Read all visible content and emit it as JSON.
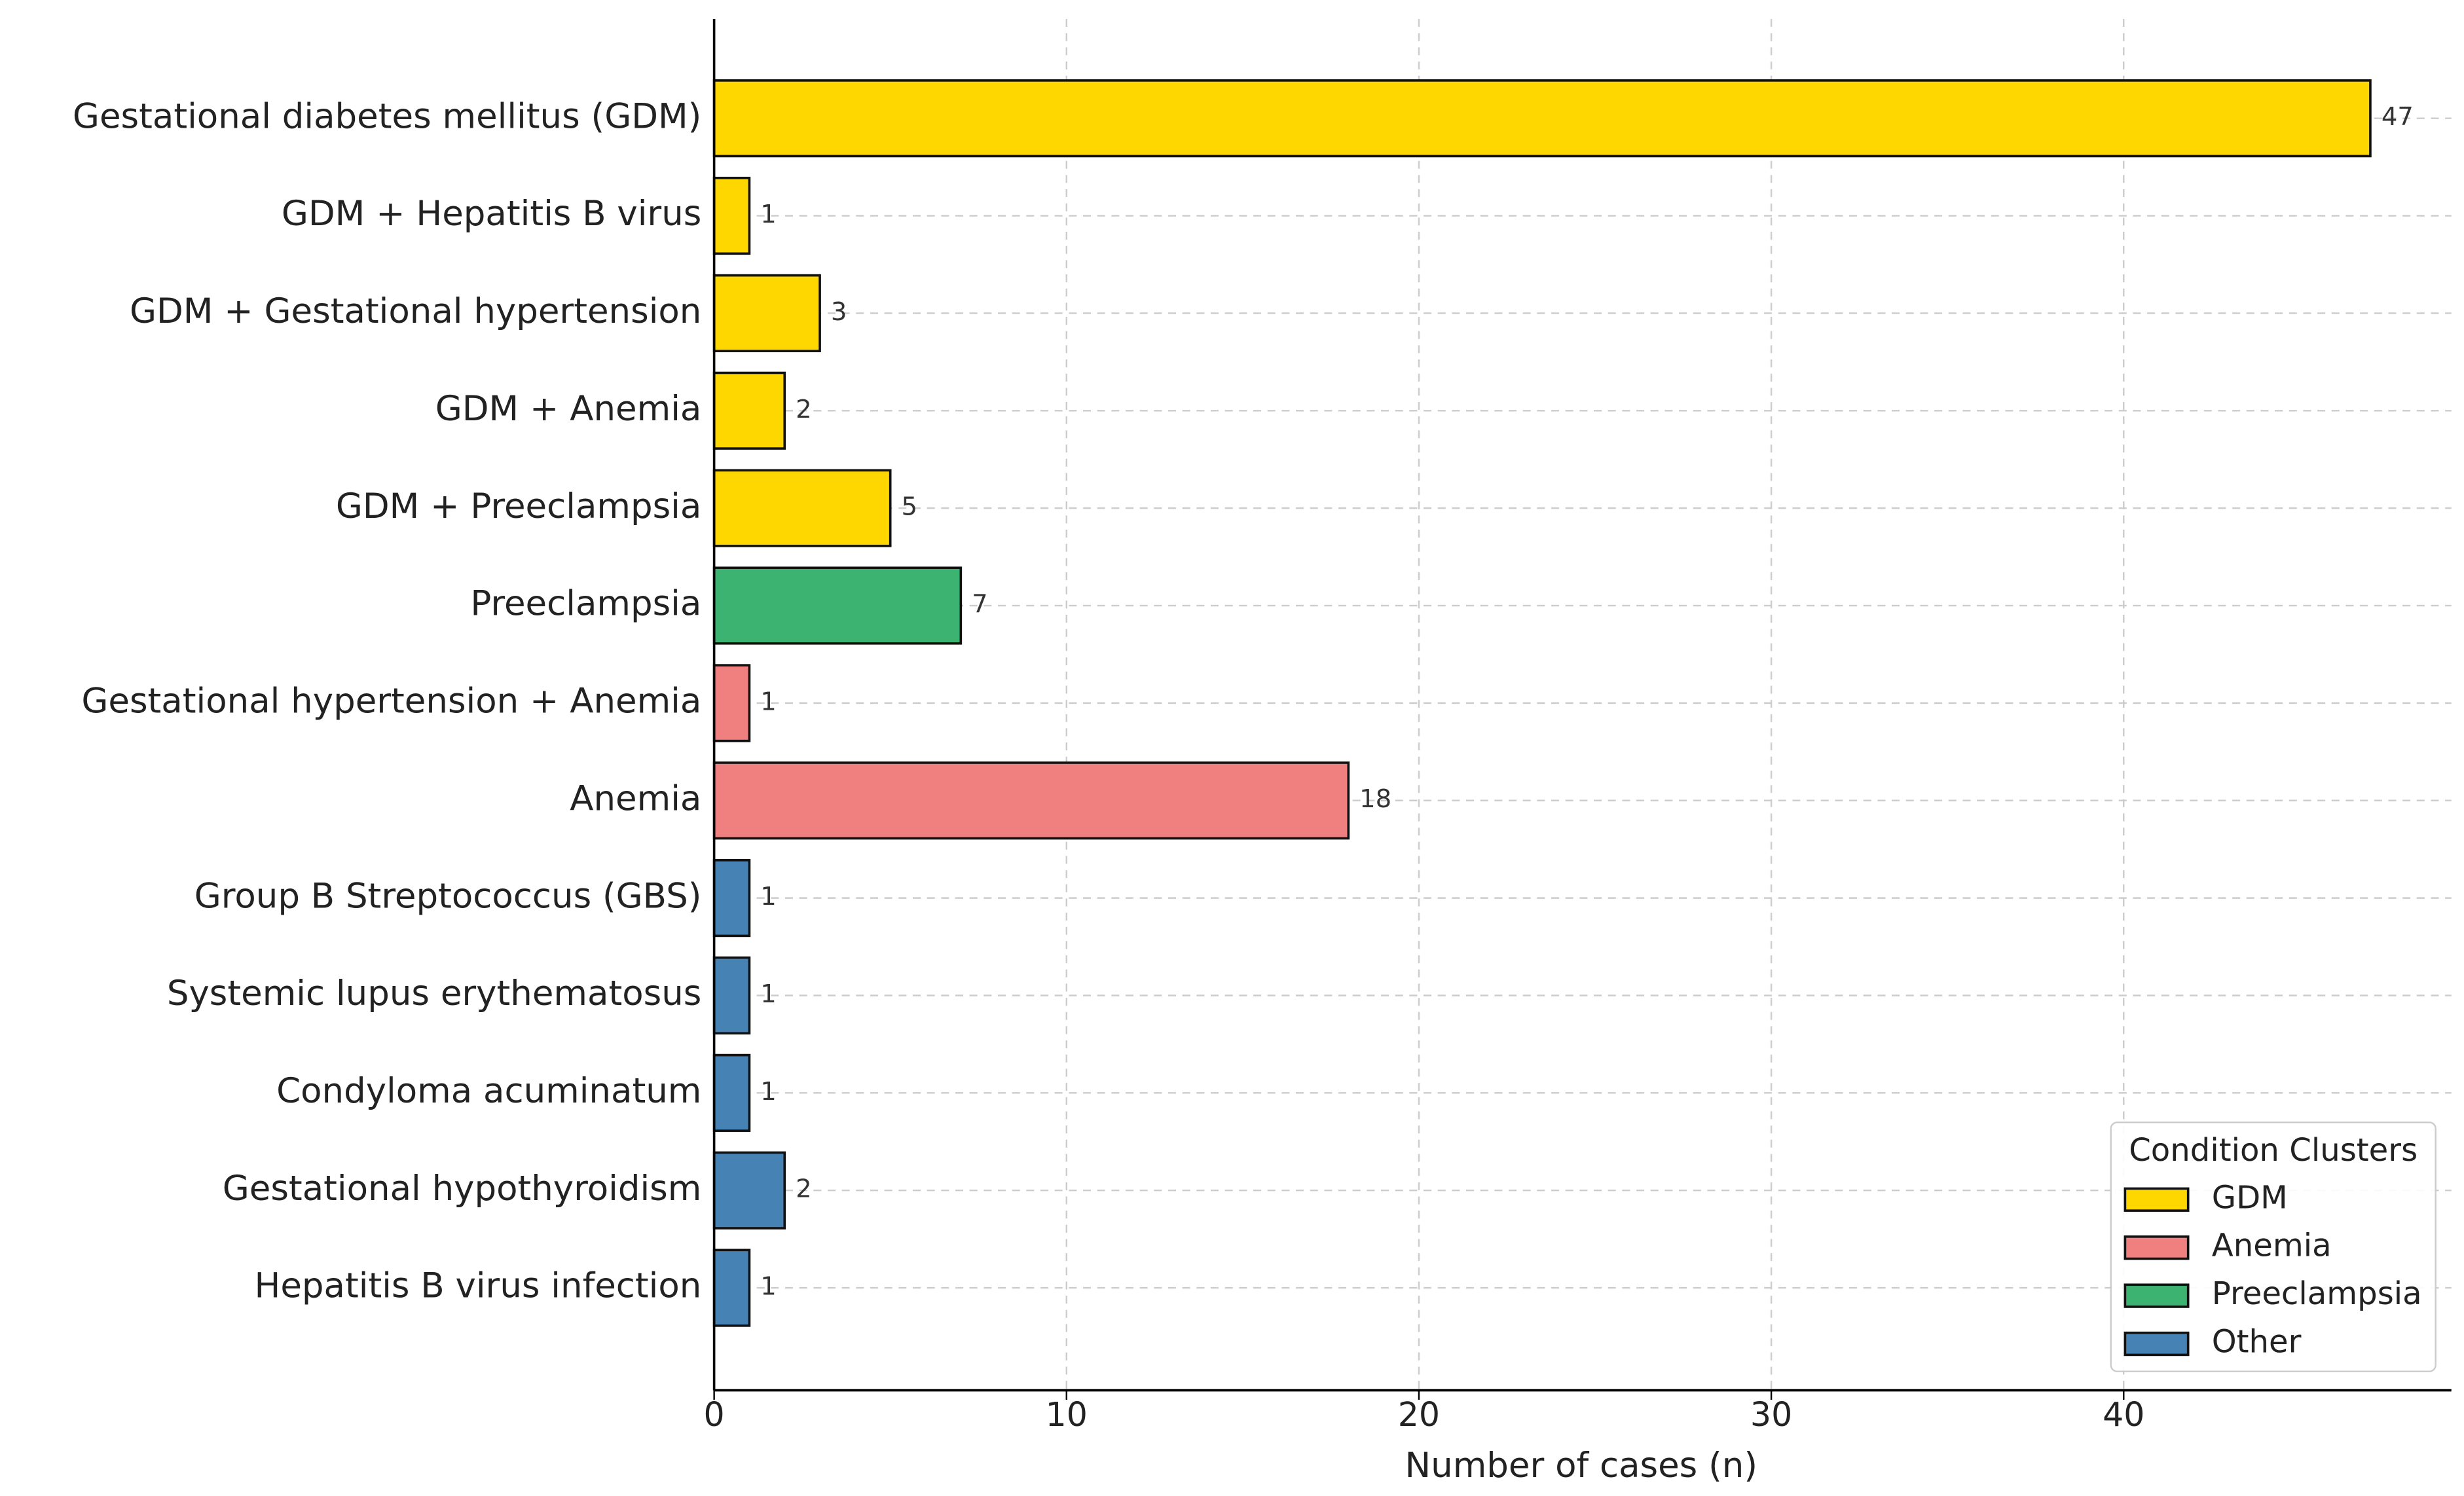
{
  "chart_data": {
    "type": "bar",
    "orientation": "horizontal",
    "x_label": "Number of cases (n)",
    "categories": [
      "Gestational diabetes mellitus (GDM)",
      "GDM + Hepatitis B virus",
      "GDM + Gestational hypertension",
      "GDM + Anemia",
      "GDM + Preeclampsia",
      "Preeclampsia",
      "Gestational hypertension + Anemia",
      "Anemia",
      "Group B Streptococcus (GBS)",
      "Systemic lupus erythematosus",
      "Condyloma acuminatum",
      "Gestational hypothyroidism",
      "Hepatitis B virus infection"
    ],
    "series": [
      {
        "name": "GDM",
        "color": "#FFD700",
        "values": [
          47,
          1,
          3,
          2,
          5,
          null,
          null,
          null,
          null,
          null,
          null,
          null,
          null
        ]
      },
      {
        "name": "Anemia",
        "color": "#F08080",
        "values": [
          null,
          null,
          null,
          null,
          null,
          null,
          1,
          18,
          null,
          null,
          null,
          null,
          null
        ]
      },
      {
        "name": "Preeclampsia",
        "color": "#3CB371",
        "values": [
          null,
          null,
          null,
          null,
          null,
          7,
          null,
          null,
          null,
          null,
          null,
          null,
          null
        ]
      },
      {
        "name": "Other",
        "color": "#4682B4",
        "values": [
          null,
          null,
          null,
          null,
          null,
          null,
          null,
          null,
          1,
          1,
          1,
          2,
          1
        ]
      }
    ],
    "legend_title": "Condition Clusters",
    "legend": "lower right",
    "xlim": [
      0,
      49.3
    ],
    "xticks": [
      0,
      10,
      20,
      30,
      40
    ],
    "grid": true
  }
}
